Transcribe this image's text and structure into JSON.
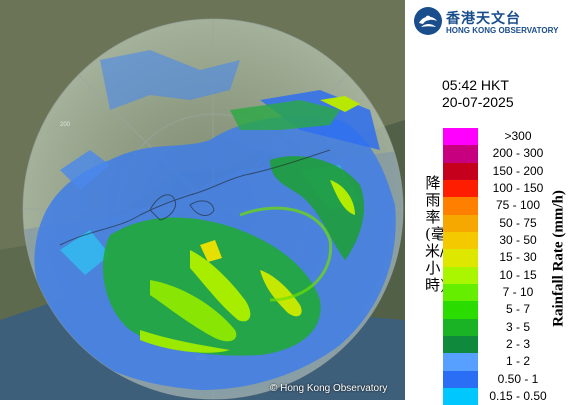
{
  "header": {
    "org_name_cn": "香港天文台",
    "org_name_en": "HONG KONG OBSERVATORY",
    "time": "05:42 HKT",
    "date": "20-07-2025"
  },
  "legend": {
    "title_en": "Rainfall Rate (mm/h)",
    "title_cn": "降雨率(毫米/小時)",
    "items": [
      {
        "label": ">300",
        "color": "#ff00ff"
      },
      {
        "label": "200 - 300",
        "color": "#c7007f"
      },
      {
        "label": "150 - 200",
        "color": "#c5001c"
      },
      {
        "label": "100 - 150",
        "color": "#ff1d00"
      },
      {
        "label": "75 - 100",
        "color": "#ff7f00"
      },
      {
        "label": "50 - 75",
        "color": "#f6a800"
      },
      {
        "label": "30 - 50",
        "color": "#f4c900"
      },
      {
        "label": "15 - 30",
        "color": "#dde700"
      },
      {
        "label": "10 - 15",
        "color": "#aaf500"
      },
      {
        "label": "7 - 10",
        "color": "#66ee00"
      },
      {
        "label": "5 - 7",
        "color": "#2bdc00"
      },
      {
        "label": "3 - 5",
        "color": "#1ab326"
      },
      {
        "label": "2 - 3",
        "color": "#0f8a3c"
      },
      {
        "label": "1 - 2",
        "color": "#58a0ff"
      },
      {
        "label": "0.50 - 1",
        "color": "#2a6ef5"
      },
      {
        "label": "0.15 - 0.50",
        "color": "#00c8ff"
      }
    ]
  },
  "map": {
    "range_ring_label": "200",
    "copyright": "© Hong Kong Observatory"
  }
}
